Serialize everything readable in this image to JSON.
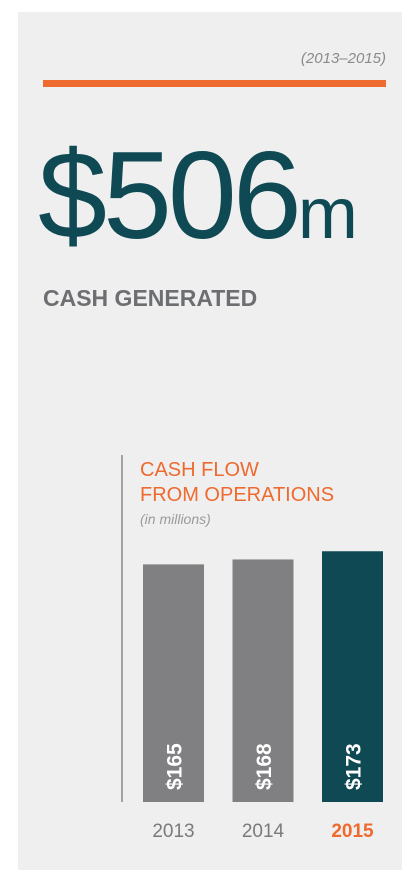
{
  "header": {
    "period": "(2013–2015)",
    "amount": "$506",
    "unit": "m",
    "label": "CASH GENERATED"
  },
  "chart_data": {
    "type": "bar",
    "title": [
      "CASH FLOW",
      "FROM OPERATIONS"
    ],
    "subtitle": "(in millions)",
    "categories": [
      "2013",
      "2014",
      "2015"
    ],
    "values": [
      165,
      168,
      173
    ],
    "value_labels": [
      "$165",
      "$168",
      "$173"
    ],
    "colors": [
      "#808083",
      "#808083",
      "#0f4a54"
    ],
    "category_colors": [
      "#7a7a7d",
      "#7a7a7d",
      "#ee6a2e"
    ],
    "ylim": [
      20,
      200
    ]
  }
}
